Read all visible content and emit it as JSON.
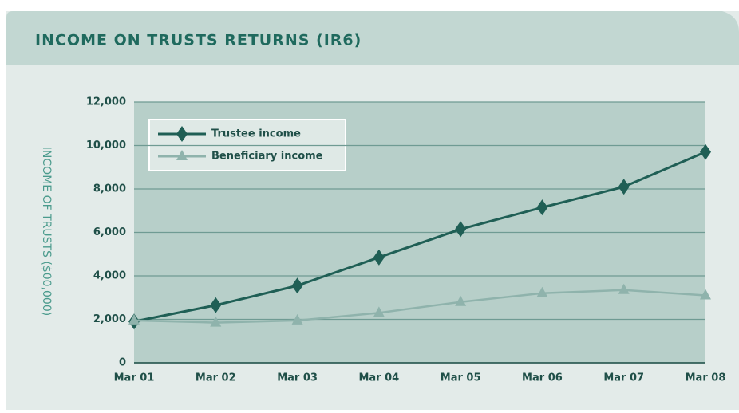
{
  "chart_data": {
    "type": "line",
    "title": "INCOME ON TRUSTS RETURNS (IR6)",
    "y_label": "INCOME OF TRUSTS ($00,000)",
    "categories": [
      "Mar 01",
      "Mar 02",
      "Mar 03",
      "Mar 04",
      "Mar 05",
      "Mar 06",
      "Mar 07",
      "Mar 08"
    ],
    "series": [
      {
        "name": "Trustee income",
        "color": "#1f5f55",
        "marker": "diamond",
        "values": [
          1900,
          2650,
          3550,
          4850,
          6150,
          7150,
          8100,
          9700
        ]
      },
      {
        "name": "Beneficiary income",
        "color": "#8fb3ac",
        "marker": "triangle",
        "values": [
          1950,
          1850,
          1950,
          2300,
          2800,
          3200,
          3350,
          3100
        ]
      }
    ],
    "ylim": [
      0,
      12000
    ],
    "yticks": [
      0,
      {
        "value": 2000,
        "label": "2,000"
      },
      {
        "value": 4000,
        "label": "4,000"
      },
      {
        "value": 6000,
        "label": "6,000"
      },
      {
        "value": 8000,
        "label": "8,000"
      },
      {
        "value": 10000,
        "label": "10,000"
      },
      {
        "value": 12000,
        "label": "12,000"
      }
    ],
    "grid": true,
    "legend": "upper left"
  }
}
